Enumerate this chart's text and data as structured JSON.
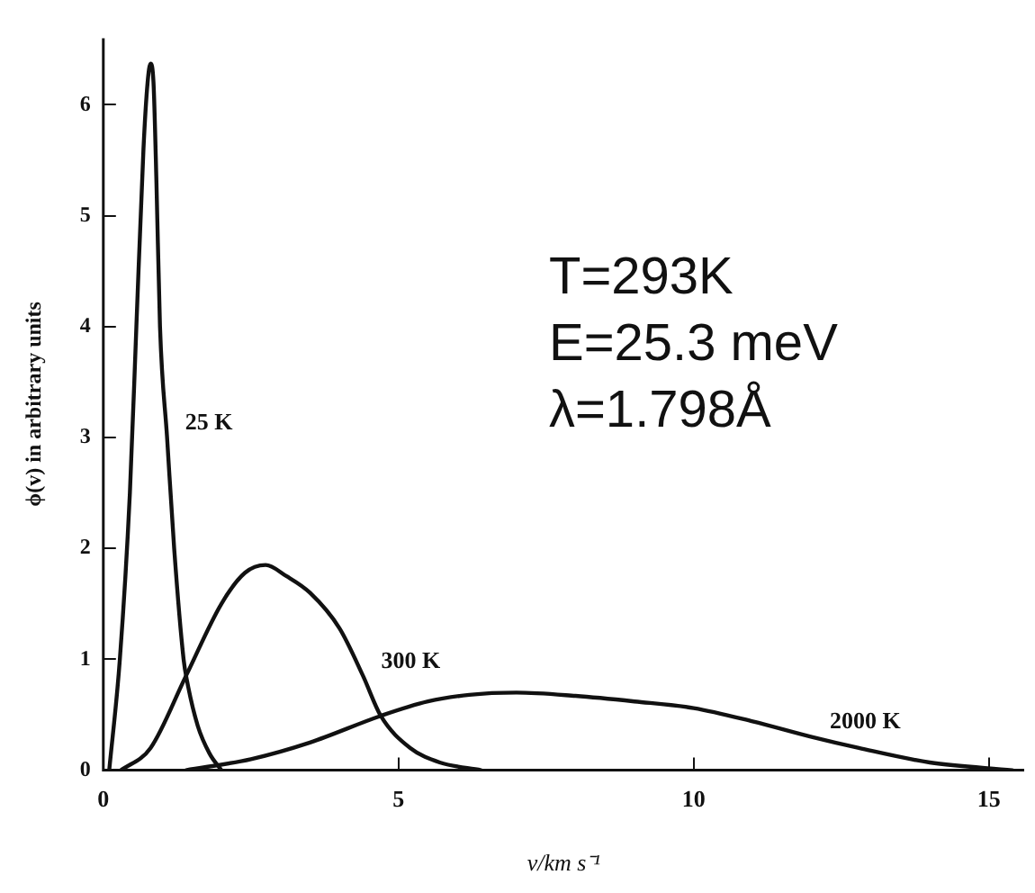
{
  "chart_data": {
    "type": "line",
    "xlabel": "v/km s⁻¹",
    "ylabel": "ϕ(v) in arbitrary units",
    "xlim": [
      0,
      15.6
    ],
    "ylim": [
      0,
      6.6
    ],
    "xticks": [
      0,
      5,
      10,
      15
    ],
    "yticks": [
      0,
      1,
      2,
      3,
      4,
      5,
      6
    ],
    "grid": false,
    "legend": false,
    "marker": "none",
    "line_style": "solid",
    "series": [
      {
        "name": "25 K",
        "color": "#111111",
        "x": [
          0.1,
          0.28,
          0.45,
          0.56,
          0.68,
          0.75,
          0.8,
          0.85,
          0.9,
          0.96,
          1.08,
          1.2,
          1.36,
          1.42,
          1.6,
          1.8,
          2.0
        ],
        "values": [
          0,
          1,
          2.5,
          4,
          5.6,
          6.2,
          6.37,
          6.2,
          5.3,
          4,
          3,
          2,
          1,
          0.8,
          0.4,
          0.15,
          0
        ]
      },
      {
        "name": "300 K",
        "color": "#111111",
        "x": [
          0.3,
          0.8,
          1.4,
          2.0,
          2.4,
          2.75,
          3.1,
          3.5,
          4.0,
          4.4,
          4.7,
          5.2,
          5.7,
          6.4
        ],
        "values": [
          0,
          0.2,
          0.85,
          1.5,
          1.78,
          1.85,
          1.75,
          1.6,
          1.28,
          0.85,
          0.49,
          0.2,
          0.07,
          0
        ]
      },
      {
        "name": "2000 K",
        "color": "#111111",
        "x": [
          1.4,
          2.5,
          3.5,
          4.7,
          5.5,
          6.2,
          7,
          8,
          9,
          10,
          11,
          12,
          12.8,
          14,
          15.4
        ],
        "values": [
          0,
          0.1,
          0.25,
          0.49,
          0.62,
          0.68,
          0.7,
          0.67,
          0.62,
          0.56,
          0.44,
          0.3,
          0.2,
          0.07,
          0
        ]
      }
    ],
    "annotations": [
      "T=293K",
      "E=25.3 meV",
      "λ=1.798Å"
    ]
  }
}
